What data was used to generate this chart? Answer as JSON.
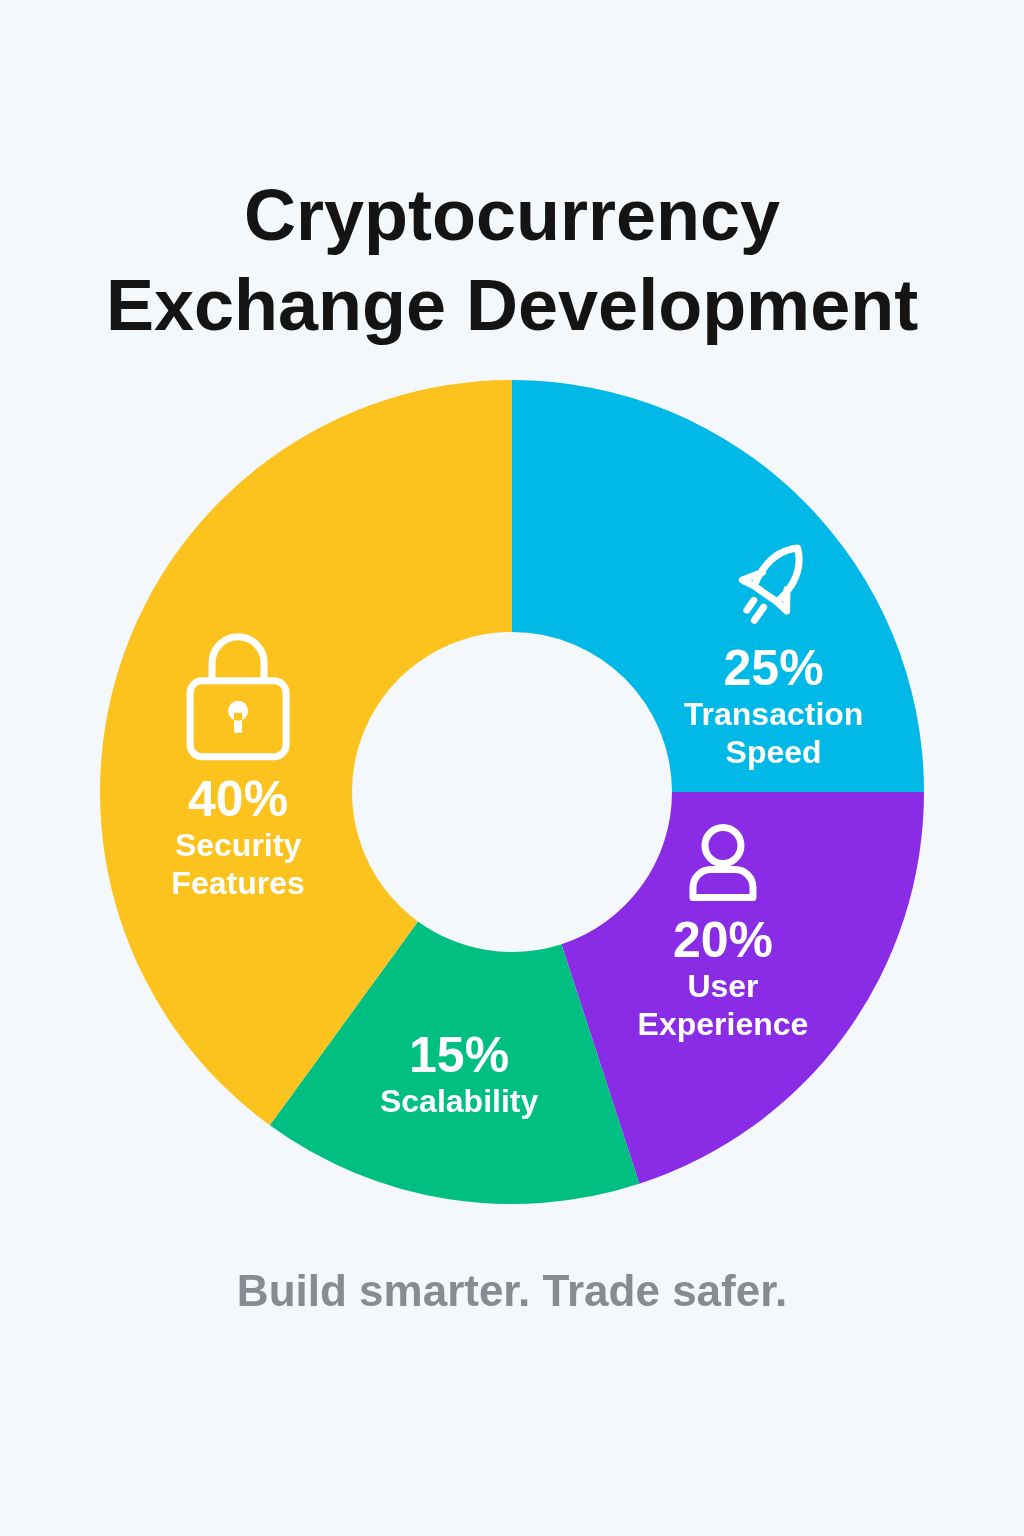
{
  "chart_data": {
    "type": "donut",
    "title": "Cryptocurrency Exchange Development",
    "categories": [
      "Transaction Speed",
      "User Experience",
      "Scalability",
      "Security Features"
    ],
    "values": [
      25,
      20,
      15,
      40
    ],
    "colors": [
      "#00b9e7",
      "#8a2be6",
      "#00bf80",
      "#fcc21d"
    ],
    "value_labels": [
      "25%",
      "20%",
      "15%",
      "40%"
    ],
    "annotations": [
      "Build smarter. Trade safer."
    ]
  }
}
